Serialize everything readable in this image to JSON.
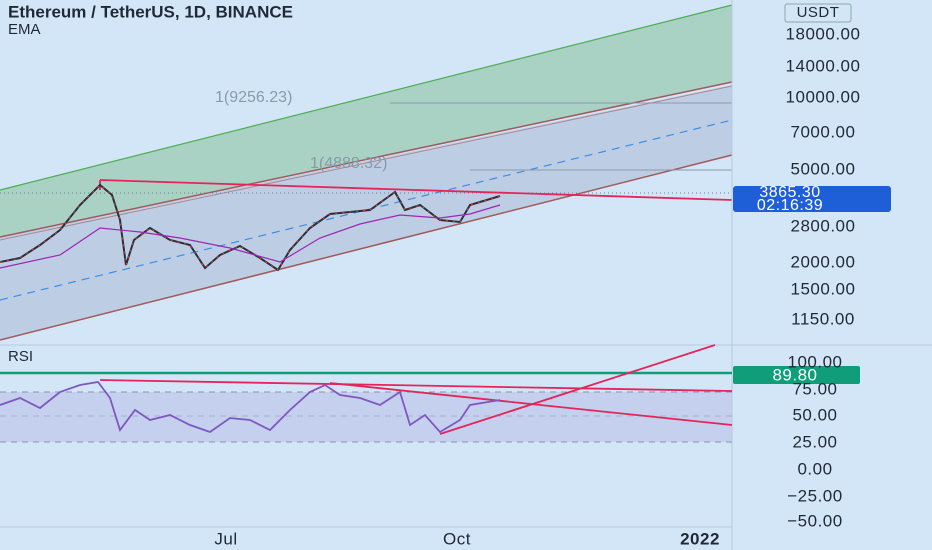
{
  "header": {
    "title": "Ethereum / TetherUS, 1D, BINANCE",
    "indicator": "EMA",
    "currency": "USDT"
  },
  "price_axis": {
    "labels": [
      "18000.00",
      "14000.00",
      "10000.00",
      "7000.00",
      "5000.00",
      "2800.00",
      "2000.00",
      "1500.00",
      "1150.00"
    ]
  },
  "price_badge": {
    "price": "3865.30",
    "countdown": "02:16:39"
  },
  "fib_labels": [
    "1(9256.23)",
    "1(4888.32)"
  ],
  "rsi": {
    "label": "RSI",
    "value": "89.80",
    "axis": [
      "100.00",
      "75.00",
      "50.00",
      "25.00",
      "0.00",
      "−25.00",
      "−50.00"
    ]
  },
  "time_axis": [
    "Jul",
    "Oct",
    "2022"
  ]
}
